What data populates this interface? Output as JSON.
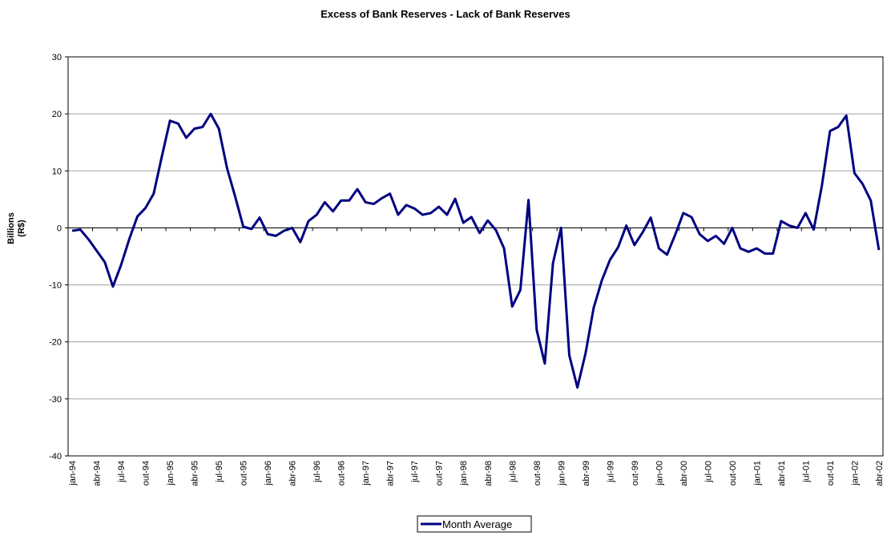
{
  "chart_data": {
    "type": "line",
    "title": "Excess of Bank Reserves - Lack of Bank Reserves",
    "y_label_lines": [
      "Billions",
      "(R$)"
    ],
    "categories": [
      "jan-94",
      null,
      null,
      "abr-94",
      null,
      null,
      "jul-94",
      null,
      null,
      "out-94",
      null,
      null,
      "jan-95",
      null,
      null,
      "abr-95",
      null,
      null,
      "jul-95",
      null,
      null,
      "out-95",
      null,
      null,
      "jan-96",
      null,
      null,
      "abr-96",
      null,
      null,
      "jul-96",
      null,
      null,
      "out-96",
      null,
      null,
      "jan-97",
      null,
      null,
      "abr-97",
      null,
      null,
      "jul-97",
      null,
      null,
      "out-97",
      null,
      null,
      "jan-98",
      null,
      null,
      "abr-98",
      null,
      null,
      "jul-98",
      null,
      null,
      "out-98",
      null,
      null,
      "jan-99",
      null,
      null,
      "abr-99",
      null,
      null,
      "jul-99",
      null,
      null,
      "out-99",
      null,
      null,
      "jan-00",
      null,
      null,
      "abr-00",
      null,
      null,
      "jul-00",
      null,
      null,
      "out-00",
      null,
      null,
      "jan-01",
      null,
      null,
      "abr-01",
      null,
      null,
      "jul-01",
      null,
      null,
      "out-01",
      null,
      null,
      "jan-02",
      null,
      null,
      "abr-02"
    ],
    "series": [
      {
        "name": "Month Average",
        "color": "#000080",
        "values": [
          -0.5,
          -0.3,
          -2,
          -4,
          -6,
          -10.3,
          -6.5,
          -2,
          2,
          3.5,
          6,
          12.5,
          18.8,
          18.3,
          15.8,
          17.4,
          17.7,
          20,
          17.4,
          10.5,
          5.5,
          0.2,
          -0.2,
          1.8,
          -1.1,
          -1.4,
          -0.5,
          0,
          -2.5,
          1.2,
          2.3,
          4.5,
          2.9,
          4.8,
          4.8,
          6.8,
          4.5,
          4.2,
          5.2,
          6,
          2.3,
          4,
          3.4,
          2.3,
          2.6,
          3.7,
          2.3,
          5.1,
          0.9,
          1.9,
          -0.9,
          1.3,
          -0.4,
          -3.6,
          -13.8,
          -10.9,
          4.9,
          -17.9,
          -23.8,
          -6.2,
          0,
          -22.3,
          -28,
          -22,
          -14,
          -9.2,
          -5.6,
          -3.4,
          0.4,
          -3,
          -0.8,
          1.8,
          -3.6,
          -4.7,
          -1.2,
          2.6,
          1.9,
          -1.1,
          -2.3,
          -1.4,
          -2.8,
          0,
          -3.6,
          -4.2,
          -3.6,
          -4.5,
          -4.5,
          1.2,
          0.4,
          0,
          2.6,
          -0.3,
          7.4,
          17,
          17.7,
          19.7,
          9.6,
          7.7,
          4.8,
          -3.9
        ]
      }
    ],
    "ylim": [
      -40,
      30
    ],
    "yticks": [
      -40,
      -30,
      -20,
      -10,
      0,
      10,
      20,
      30
    ],
    "grid": true
  }
}
